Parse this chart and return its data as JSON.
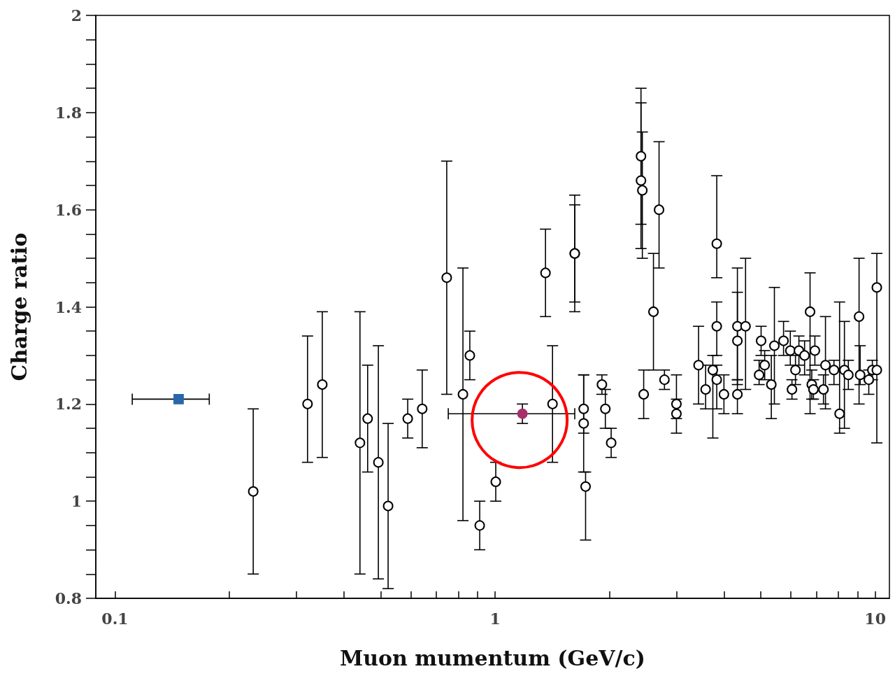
{
  "chart_data": {
    "type": "scatter",
    "xlabel": "Muon mumentum (GeV/c)",
    "ylabel": "Charge ratio",
    "log": "x",
    "grid": false,
    "marker": "circle",
    "xlim": [
      0.089,
      10.9
    ],
    "ylim": [
      0.8,
      2
    ],
    "xticks": [
      0.1,
      {
        "value": 0.2,
        "label": null
      },
      {
        "value": 0.3,
        "label": null
      },
      {
        "value": 0.4,
        "label": null
      },
      {
        "value": 0.5,
        "label": null
      },
      {
        "value": 0.6,
        "label": null
      },
      {
        "value": 0.7,
        "label": null
      },
      {
        "value": 0.8,
        "label": null
      },
      {
        "value": 0.9,
        "label": null
      },
      1,
      {
        "value": 2,
        "label": null
      },
      {
        "value": 3,
        "label": null
      },
      {
        "value": 4,
        "label": null
      },
      {
        "value": 5,
        "label": null
      },
      {
        "value": 6,
        "label": null
      },
      {
        "value": 7,
        "label": null
      },
      {
        "value": 8,
        "label": null
      },
      {
        "value": 9,
        "label": null
      },
      10
    ],
    "yticks": [
      0.8,
      {
        "value": 0.85,
        "label": null
      },
      {
        "value": 0.9,
        "label": null
      },
      {
        "value": 0.95,
        "label": null
      },
      1,
      {
        "value": 1.05,
        "label": null
      },
      {
        "value": 1.1,
        "label": null
      },
      {
        "value": 1.15,
        "label": null
      },
      1.2,
      {
        "value": 1.25,
        "label": null
      },
      {
        "value": 1.3,
        "label": null
      },
      {
        "value": 1.35,
        "label": null
      },
      1.4,
      {
        "value": 1.45,
        "label": null
      },
      {
        "value": 1.5,
        "label": null
      },
      {
        "value": 1.55,
        "label": null
      },
      1.6,
      {
        "value": 1.65,
        "label": null
      },
      {
        "value": 1.7,
        "label": null
      },
      {
        "value": 1.75,
        "label": null
      },
      1.8,
      {
        "value": 1.85,
        "label": null
      },
      {
        "value": 1.9,
        "label": null
      },
      {
        "value": 1.95,
        "label": null
      },
      2
    ],
    "series": [
      {
        "color": "#000000",
        "x": [
          0.231,
          0.321,
          0.351,
          0.441,
          0.462,
          0.493,
          0.523,
          0.589,
          0.643,
          0.746,
          0.823,
          0.858,
          0.911,
          1.004,
          1.357,
          1.416,
          1.62,
          1.62,
          1.71,
          1.71,
          1.73,
          1.91,
          1.95,
          2.02,
          2.42,
          2.42,
          2.44,
          2.46,
          2.61,
          2.7,
          2.79,
          3.0,
          3.0,
          3.43,
          3.58,
          3.74,
          3.83,
          3.83,
          3.83,
          4.0,
          4.34,
          4.34,
          4.34,
          4.56,
          4.95,
          5.01,
          5.12,
          5.33,
          5.43,
          5.74,
          5.98,
          6.04,
          6.17,
          6.3,
          6.52,
          6.74,
          6.81,
          6.88,
          6.94,
          7.31,
          7.4,
          7.79,
          8.06,
          8.3,
          8.5,
          9.07,
          9.13,
          9.62,
          9.83,
          10.1,
          10.1
        ],
        "values": [
          1.02,
          1.2,
          1.24,
          1.12,
          1.17,
          1.08,
          0.99,
          1.17,
          1.19,
          1.46,
          1.22,
          1.3,
          0.95,
          1.04,
          1.47,
          1.2,
          1.51,
          1.51,
          1.19,
          1.16,
          1.03,
          1.24,
          1.19,
          1.12,
          1.71,
          1.66,
          1.64,
          1.22,
          1.39,
          1.6,
          1.25,
          1.2,
          1.18,
          1.28,
          1.23,
          1.27,
          1.53,
          1.36,
          1.25,
          1.22,
          1.36,
          1.33,
          1.22,
          1.36,
          1.26,
          1.33,
          1.28,
          1.24,
          1.32,
          1.33,
          1.31,
          1.23,
          1.27,
          1.31,
          1.3,
          1.39,
          1.24,
          1.23,
          1.31,
          1.23,
          1.28,
          1.27,
          1.18,
          1.27,
          1.26,
          1.38,
          1.26,
          1.25,
          1.27,
          1.44,
          1.27
        ],
        "errors": [
          [
            0.85,
            1.19
          ],
          [
            1.08,
            1.34
          ],
          [
            1.09,
            1.39
          ],
          [
            0.85,
            1.39
          ],
          [
            1.06,
            1.28
          ],
          [
            0.84,
            1.32
          ],
          [
            0.82,
            1.16
          ],
          [
            1.13,
            1.21
          ],
          [
            1.11,
            1.27
          ],
          [
            1.22,
            1.7
          ],
          [
            0.96,
            1.48
          ],
          [
            1.25,
            1.35
          ],
          [
            0.9,
            1
          ],
          [
            1,
            1.08
          ],
          [
            1.38,
            1.56
          ],
          [
            1.08,
            1.32
          ],
          [
            1.39,
            1.63
          ],
          [
            1.41,
            1.61
          ],
          [
            1.14,
            1.26
          ],
          [
            1.06,
            1.26
          ],
          [
            0.92,
            1.06
          ],
          [
            1.22,
            1.26
          ],
          [
            1.15,
            1.23
          ],
          [
            1.09,
            1.15
          ],
          [
            1.57,
            1.85
          ],
          [
            1.52,
            1.82
          ],
          [
            1.5,
            1.76
          ],
          [
            1.17,
            1.27
          ],
          [
            1.27,
            1.51
          ],
          [
            1.48,
            1.74
          ],
          [
            1.23,
            1.27
          ],
          [
            1.17,
            1.26
          ],
          [
            1.14,
            1.21
          ],
          [
            1.2,
            1.36
          ],
          [
            1.19,
            1.28
          ],
          [
            1.13,
            1.3
          ],
          [
            1.46,
            1.67
          ],
          [
            1.3,
            1.41
          ],
          [
            1.19,
            1.28
          ],
          [
            1.18,
            1.26
          ],
          [
            1.25,
            1.48
          ],
          [
            1.24,
            1.43
          ],
          [
            1.18,
            1.25
          ],
          [
            1.23,
            1.5
          ],
          [
            1.24,
            1.29
          ],
          [
            1.3,
            1.36
          ],
          [
            1.25,
            1.31
          ],
          [
            1.17,
            1.3
          ],
          [
            1.2,
            1.44
          ],
          [
            1.3,
            1.37
          ],
          [
            1.28,
            1.35
          ],
          [
            1.21,
            1.25
          ],
          [
            1.24,
            1.3
          ],
          [
            1.28,
            1.34
          ],
          [
            1.26,
            1.33
          ],
          [
            1.18,
            1.47
          ],
          [
            1.21,
            1.27
          ],
          [
            1.21,
            1.25
          ],
          [
            1.28,
            1.34
          ],
          [
            1.2,
            1.26
          ],
          [
            1.19,
            1.38
          ],
          [
            1.24,
            1.29
          ],
          [
            1.14,
            1.41
          ],
          [
            1.15,
            1.37
          ],
          [
            1.23,
            1.29
          ],
          [
            1.2,
            1.5
          ],
          [
            1.24,
            1.32
          ],
          [
            1.22,
            1.27
          ],
          [
            1.25,
            1.29
          ],
          [
            1.12,
            1.51
          ],
          null
        ]
      },
      {
        "color": "#2a66a8",
        "marker": "square",
        "x": [
          0.147
        ],
        "values": [
          1.21
        ],
        "errors": [
          null
        ],
        "xerrors": [
          [
            0.111,
            0.177
          ]
        ]
      },
      {
        "color": "#a8306a",
        "marker": "circle",
        "x": [
          1.18
        ],
        "values": [
          1.18
        ],
        "errors": [
          [
            1.16,
            1.2
          ]
        ],
        "xerrors": [
          [
            0.753,
            1.62
          ]
        ]
      }
    ]
  }
}
